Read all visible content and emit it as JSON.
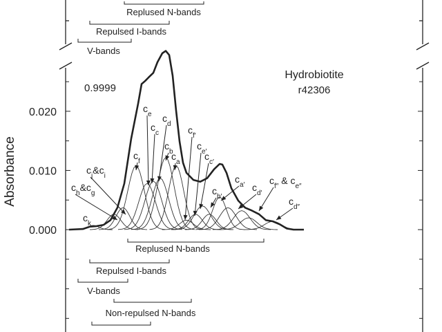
{
  "chart_data": {
    "type": "line",
    "title": "Hydrobiotite",
    "subtitle": "r42306",
    "annotation": "0.9999",
    "y_label": "Absorbance",
    "ylim": [
      -0.0173,
      0.0277
    ],
    "xlim": [
      0,
      340
    ],
    "yticks": [
      {
        "value": 0,
        "label": "0.000"
      },
      {
        "value": 0.01,
        "label": "0.010"
      },
      {
        "value": 0.02,
        "label": "0.020"
      }
    ],
    "x": [
      0,
      20,
      30,
      40,
      50,
      60,
      70,
      80,
      90,
      100,
      105,
      110,
      115,
      122,
      128,
      135,
      140,
      145,
      150,
      155,
      160,
      165,
      170,
      180,
      190,
      200,
      210,
      218,
      222,
      228,
      235,
      245,
      255,
      265,
      275,
      285,
      295,
      305,
      315,
      325,
      340
    ],
    "values": [
      0,
      0.0001,
      0.0005,
      0.0006,
      0.0008,
      0.0016,
      0.0037,
      0.0078,
      0.0154,
      0.0213,
      0.0246,
      0.0251,
      0.0257,
      0.0265,
      0.0283,
      0.0298,
      0.0302,
      0.0295,
      0.026,
      0.0201,
      0.0149,
      0.0113,
      0.0096,
      0.0084,
      0.0081,
      0.0087,
      0.0102,
      0.0111,
      0.011,
      0.0096,
      0.007,
      0.0049,
      0.0037,
      0.0032,
      0.0026,
      0.0016,
      0.0014,
      0.0009,
      0.0002,
      0,
      0
    ],
    "color": "#222222",
    "components": [
      {
        "center": 35,
        "height": 0.0007,
        "width": 8
      },
      {
        "center": 65,
        "height": 0.0026,
        "width": 10
      },
      {
        "center": 78,
        "height": 0.0037,
        "width": 10
      },
      {
        "center": 97,
        "height": 0.0108,
        "width": 12
      },
      {
        "center": 113,
        "height": 0.0078,
        "width": 12
      },
      {
        "center": 122,
        "height": 0.0082,
        "width": 12
      },
      {
        "center": 132,
        "height": 0.0087,
        "width": 12
      },
      {
        "center": 140,
        "height": 0.0122,
        "width": 12
      },
      {
        "center": 155,
        "height": 0.0108,
        "width": 11
      },
      {
        "center": 170,
        "height": 0.0016,
        "width": 10
      },
      {
        "center": 183,
        "height": 0.0026,
        "width": 10
      },
      {
        "center": 193,
        "height": 0.004,
        "width": 12
      },
      {
        "center": 203,
        "height": 0.0026,
        "width": 10
      },
      {
        "center": 218,
        "height": 0.0055,
        "width": 10
      },
      {
        "center": 230,
        "height": 0.0037,
        "width": 12
      },
      {
        "center": 250,
        "height": 0.0032,
        "width": 12
      },
      {
        "center": 260,
        "height": 0.002,
        "width": 12
      },
      {
        "center": 295,
        "height": 0.0014,
        "width": 12
      }
    ],
    "annotations": [
      [
        "c",
        "k"
      ],
      [
        "c",
        "h",
        "&c",
        "g"
      ],
      [
        "c",
        "j",
        "&c",
        "i"
      ],
      [
        "c",
        "f"
      ],
      [
        "c",
        "e"
      ],
      [
        "c",
        "c"
      ],
      [
        "c",
        "d"
      ],
      [
        "c",
        "b"
      ],
      [
        "c",
        "a"
      ],
      [
        "c",
        "f′"
      ],
      [
        "c",
        "e′"
      ],
      [
        "c",
        "c′"
      ],
      [
        "c",
        "b′"
      ],
      [
        "c",
        "a′"
      ],
      [
        "c",
        "d′"
      ],
      [
        "c",
        "f″",
        " & c",
        "e″"
      ],
      [
        "c",
        "d″"
      ]
    ],
    "range_labels_top": [
      "Replused N-bands",
      "Repulsed I-bands",
      "V-bands"
    ],
    "range_labels_bottom": [
      "Replused N-bands",
      "Repulsed I-bands",
      "V-bands",
      "Non-repulsed N-bands"
    ]
  }
}
